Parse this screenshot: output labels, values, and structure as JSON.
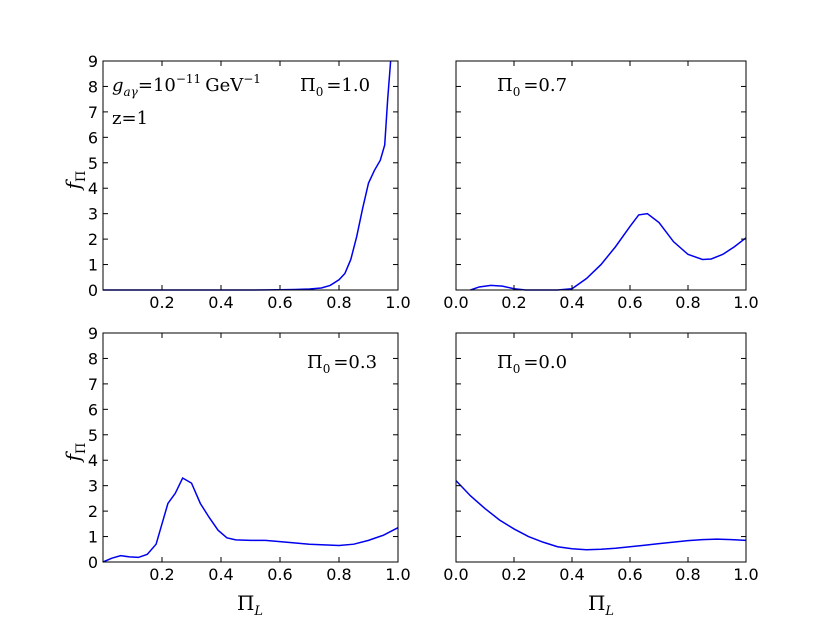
{
  "chart_data": [
    {
      "type": "line",
      "panel": "top-left",
      "annotations": [
        "g_{aγ}=10^{-11} GeV^{-1}",
        "Π_0 =1.0",
        "z=1"
      ],
      "annotation_text": {
        "g": "g",
        "g_sub": "aγ",
        "eq": "=10",
        "exp": "−11",
        "unit": "GeV",
        "unit_exp": "−1",
        "pi": "Π",
        "pi_sub": "0",
        "pi_val": "=1.0",
        "z": "z=1"
      },
      "ylabel": "f_Π",
      "ylabel_text": {
        "main": "f",
        "sub": "Π"
      },
      "xlabel": "",
      "xlim": [
        0.0,
        1.0
      ],
      "ylim": [
        0,
        9
      ],
      "xticks": [
        "0.2",
        "0.4",
        "0.6",
        "0.8",
        "1.0"
      ],
      "yticks": [
        "0",
        "1",
        "2",
        "3",
        "4",
        "5",
        "6",
        "7",
        "8",
        "9"
      ],
      "series": [
        {
          "x": [
            0.0,
            0.1,
            0.2,
            0.3,
            0.4,
            0.5,
            0.6,
            0.65,
            0.7,
            0.74,
            0.77,
            0.8,
            0.82,
            0.84,
            0.86,
            0.88,
            0.9,
            0.92,
            0.94,
            0.955,
            0.965,
            0.975
          ],
          "y": [
            0.0,
            0.0,
            0.0,
            0.0,
            0.0,
            0.0,
            0.01,
            0.02,
            0.04,
            0.08,
            0.18,
            0.4,
            0.65,
            1.2,
            2.1,
            3.2,
            4.2,
            4.7,
            5.1,
            5.7,
            7.5,
            9.0
          ]
        }
      ]
    },
    {
      "type": "line",
      "panel": "top-right",
      "annotations": [
        "Π_0 =0.7"
      ],
      "annotation_text": {
        "pi": "Π",
        "pi_sub": "0",
        "pi_val": "=0.7"
      },
      "xlim": [
        0.0,
        1.0
      ],
      "ylim": [
        0,
        9
      ],
      "xticks": [
        "0.0",
        "0.2",
        "0.4",
        "0.6",
        "0.8",
        "1.0"
      ],
      "yticks": [],
      "series": [
        {
          "x": [
            0.05,
            0.08,
            0.12,
            0.16,
            0.2,
            0.24,
            0.27,
            0.3,
            0.35,
            0.4,
            0.45,
            0.5,
            0.55,
            0.6,
            0.63,
            0.66,
            0.7,
            0.75,
            0.8,
            0.85,
            0.88,
            0.92,
            0.96,
            1.0
          ],
          "y": [
            0.0,
            0.12,
            0.18,
            0.15,
            0.05,
            0.0,
            0.0,
            0.0,
            0.0,
            0.05,
            0.45,
            1.0,
            1.7,
            2.5,
            2.95,
            3.0,
            2.65,
            1.9,
            1.4,
            1.2,
            1.22,
            1.4,
            1.7,
            2.05
          ]
        }
      ]
    },
    {
      "type": "line",
      "panel": "bottom-left",
      "annotations": [
        "Π_0 =0.3"
      ],
      "annotation_text": {
        "pi": "Π",
        "pi_sub": "0",
        "pi_val": "=0.3"
      },
      "ylabel": "f_Π",
      "ylabel_text": {
        "main": "f",
        "sub": "Π"
      },
      "xlabel": "Π_L",
      "xlabel_text": {
        "main": "Π",
        "sub": "L"
      },
      "xlim": [
        0.0,
        1.0
      ],
      "ylim": [
        0,
        9
      ],
      "xticks": [
        "0.2",
        "0.4",
        "0.6",
        "0.8",
        "1.0"
      ],
      "yticks": [
        "0",
        "1",
        "2",
        "3",
        "4",
        "5",
        "6",
        "7",
        "8",
        "9"
      ],
      "series": [
        {
          "x": [
            0.0,
            0.03,
            0.06,
            0.09,
            0.12,
            0.15,
            0.18,
            0.2,
            0.22,
            0.245,
            0.27,
            0.3,
            0.33,
            0.36,
            0.39,
            0.42,
            0.45,
            0.5,
            0.55,
            0.6,
            0.7,
            0.8,
            0.85,
            0.9,
            0.95,
            1.0
          ],
          "y": [
            0.0,
            0.15,
            0.25,
            0.2,
            0.18,
            0.3,
            0.7,
            1.5,
            2.3,
            2.7,
            3.3,
            3.1,
            2.3,
            1.75,
            1.25,
            0.95,
            0.87,
            0.85,
            0.85,
            0.8,
            0.7,
            0.65,
            0.7,
            0.85,
            1.05,
            1.35
          ]
        }
      ]
    },
    {
      "type": "line",
      "panel": "bottom-right",
      "annotations": [
        "Π_0 =0.0"
      ],
      "annotation_text": {
        "pi": "Π",
        "pi_sub": "0",
        "pi_val": "=0.0"
      },
      "xlabel": "Π_L",
      "xlabel_text": {
        "main": "Π",
        "sub": "L"
      },
      "xlim": [
        0.0,
        1.0
      ],
      "ylim": [
        0,
        9
      ],
      "xticks": [
        "0.0",
        "0.2",
        "0.4",
        "0.6",
        "0.8",
        "1.0"
      ],
      "yticks": [],
      "series": [
        {
          "x": [
            0.0,
            0.05,
            0.1,
            0.15,
            0.2,
            0.25,
            0.3,
            0.35,
            0.4,
            0.45,
            0.5,
            0.55,
            0.6,
            0.65,
            0.7,
            0.75,
            0.8,
            0.85,
            0.9,
            0.95,
            1.0
          ],
          "y": [
            3.2,
            2.6,
            2.1,
            1.65,
            1.3,
            1.0,
            0.78,
            0.6,
            0.52,
            0.48,
            0.5,
            0.54,
            0.6,
            0.66,
            0.72,
            0.78,
            0.84,
            0.88,
            0.9,
            0.88,
            0.85
          ]
        }
      ]
    }
  ],
  "colors": {
    "curve": "#0000ee",
    "frame": "#000000",
    "background": "#ffffff"
  }
}
